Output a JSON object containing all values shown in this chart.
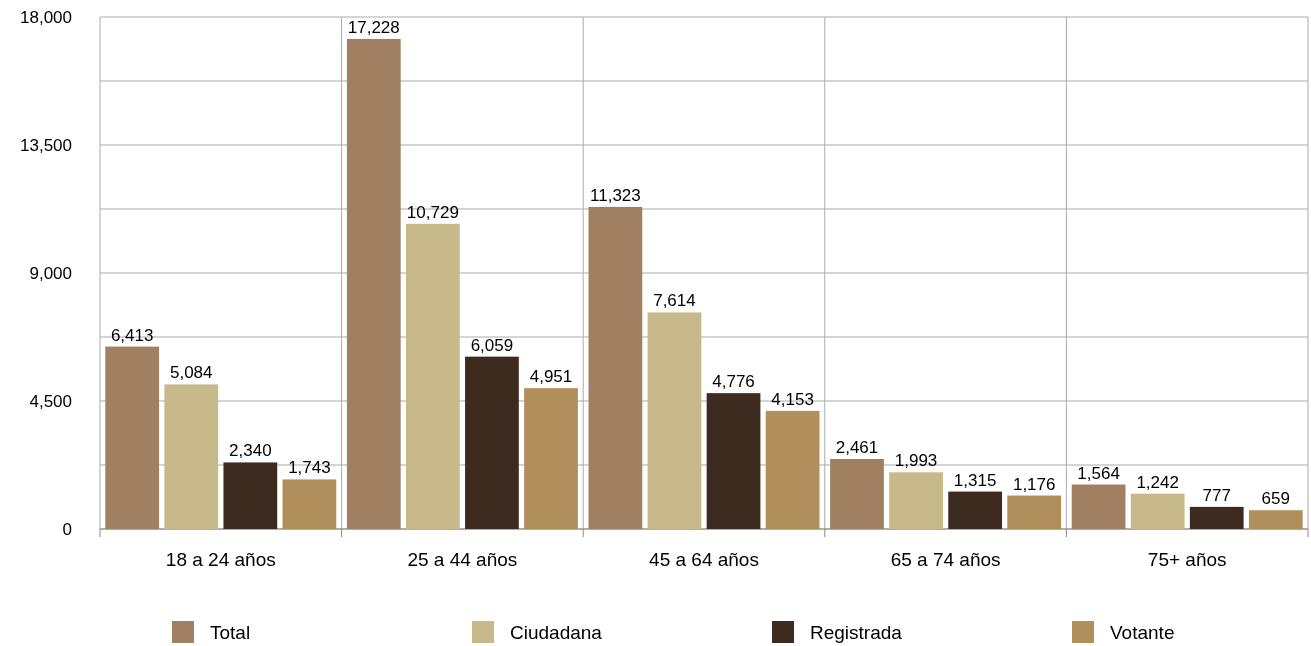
{
  "chart_data": {
    "type": "bar",
    "categories": [
      "18 a 24 años",
      "25 a 44 años",
      "45 a 64 años",
      "65 a 74 años",
      "75+ años"
    ],
    "series": [
      {
        "name": "Total",
        "color": "#a08060",
        "values": [
          6413,
          17228,
          11323,
          2461,
          1564
        ],
        "value_labels": [
          "6,413",
          "17,228",
          "11,323",
          "2,461",
          "1,564"
        ]
      },
      {
        "name": "Ciudadana",
        "color": "#c8b98a",
        "values": [
          5084,
          10729,
          7614,
          1993,
          1242
        ],
        "value_labels": [
          "5,084",
          "10,729",
          "7,614",
          "1,993",
          "1,242"
        ]
      },
      {
        "name": "Registrada",
        "color": "#3d2b1f",
        "values": [
          2340,
          6059,
          4776,
          1315,
          777
        ],
        "value_labels": [
          "2,340",
          "6,059",
          "4,776",
          "1,315",
          "777"
        ]
      },
      {
        "name": "Votante",
        "color": "#b08f5a",
        "values": [
          1743,
          4951,
          4153,
          1176,
          659
        ],
        "value_labels": [
          "1,743",
          "4,951",
          "4,153",
          "1,176",
          "659"
        ]
      }
    ],
    "ylim": [
      0,
      18000
    ],
    "yticks": [
      {
        "value": 0,
        "label": "0"
      },
      {
        "value": 2250,
        "label": null
      },
      {
        "value": 4500,
        "label": "4,500"
      },
      {
        "value": 6750,
        "label": null
      },
      {
        "value": 9000,
        "label": "9,000"
      },
      {
        "value": 11250,
        "label": null
      },
      {
        "value": 13500,
        "label": "13,500"
      },
      {
        "value": 15750,
        "label": null
      },
      {
        "value": 18000,
        "label": "18,000"
      }
    ],
    "grid": true,
    "legend": "bottom"
  }
}
